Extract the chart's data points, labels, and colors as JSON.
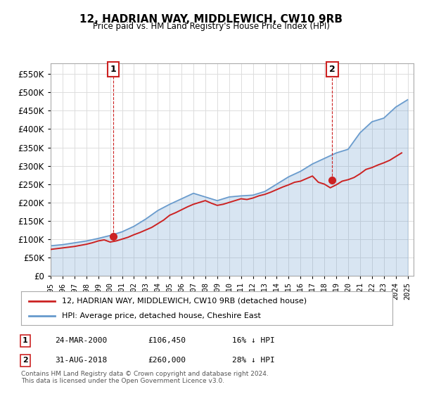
{
  "title": "12, HADRIAN WAY, MIDDLEWICH, CW10 9RB",
  "subtitle": "Price paid vs. HM Land Registry's House Price Index (HPI)",
  "footer": "Contains HM Land Registry data © Crown copyright and database right 2024.\nThis data is licensed under the Open Government Licence v3.0.",
  "legend_line1": "12, HADRIAN WAY, MIDDLEWICH, CW10 9RB (detached house)",
  "legend_line2": "HPI: Average price, detached house, Cheshire East",
  "annotation1_label": "1",
  "annotation1_date": "24-MAR-2000",
  "annotation1_price": "£106,450",
  "annotation1_hpi": "16% ↓ HPI",
  "annotation2_label": "2",
  "annotation2_date": "31-AUG-2018",
  "annotation2_price": "£260,000",
  "annotation2_hpi": "28% ↓ HPI",
  "ylim": [
    0,
    580000
  ],
  "yticks": [
    0,
    50000,
    100000,
    150000,
    200000,
    250000,
    300000,
    350000,
    400000,
    450000,
    500000,
    550000
  ],
  "hpi_color": "#6699cc",
  "price_color": "#cc2222",
  "marker_color_1": "#cc2222",
  "marker_color_2": "#cc2222",
  "annotation_box_color": "#cc2222",
  "background_color": "#ffffff",
  "plot_bg_color": "#ffffff",
  "grid_color": "#dddddd",
  "hpi_years": [
    1995,
    1996,
    1997,
    1998,
    1999,
    2000,
    2001,
    2002,
    2003,
    2004,
    2005,
    2006,
    2007,
    2008,
    2009,
    2010,
    2011,
    2012,
    2013,
    2014,
    2015,
    2016,
    2017,
    2018,
    2019,
    2020,
    2021,
    2022,
    2023,
    2024,
    2025
  ],
  "hpi_values": [
    82000,
    85000,
    90000,
    95000,
    102000,
    110000,
    120000,
    135000,
    155000,
    178000,
    195000,
    210000,
    225000,
    215000,
    205000,
    215000,
    218000,
    220000,
    230000,
    250000,
    270000,
    285000,
    305000,
    320000,
    335000,
    345000,
    390000,
    420000,
    430000,
    460000,
    480000
  ],
  "price_years": [
    1995.0,
    1995.5,
    1996.0,
    1996.5,
    1997.0,
    1997.5,
    1998.0,
    1998.5,
    1999.0,
    1999.5,
    2000.0,
    2000.5,
    2001.0,
    2001.5,
    2002.0,
    2002.5,
    2003.0,
    2003.5,
    2004.0,
    2004.5,
    2005.0,
    2005.5,
    2006.0,
    2006.5,
    2007.0,
    2007.5,
    2008.0,
    2008.5,
    2009.0,
    2009.5,
    2010.0,
    2010.5,
    2011.0,
    2011.5,
    2012.0,
    2012.5,
    2013.0,
    2013.5,
    2014.0,
    2014.5,
    2015.0,
    2015.5,
    2016.0,
    2016.5,
    2017.0,
    2017.5,
    2018.0,
    2018.5,
    2019.0,
    2019.5,
    2020.0,
    2020.5,
    2021.0,
    2021.5,
    2022.0,
    2022.5,
    2023.0,
    2023.5,
    2024.0,
    2024.5
  ],
  "price_values": [
    72000,
    74000,
    76000,
    78000,
    80000,
    83000,
    86000,
    90000,
    95000,
    98000,
    92000,
    95000,
    100000,
    105000,
    112000,
    118000,
    125000,
    132000,
    142000,
    152000,
    165000,
    172000,
    180000,
    188000,
    195000,
    200000,
    205000,
    198000,
    192000,
    195000,
    200000,
    205000,
    210000,
    208000,
    212000,
    218000,
    222000,
    228000,
    235000,
    242000,
    248000,
    255000,
    258000,
    265000,
    272000,
    255000,
    250000,
    240000,
    248000,
    258000,
    262000,
    268000,
    278000,
    290000,
    295000,
    302000,
    308000,
    315000,
    325000,
    335000
  ],
  "sale1_x": 2000.25,
  "sale1_y": 106450,
  "sale2_x": 2018.67,
  "sale2_y": 260000,
  "xmin": 1995,
  "xmax": 2025.5
}
